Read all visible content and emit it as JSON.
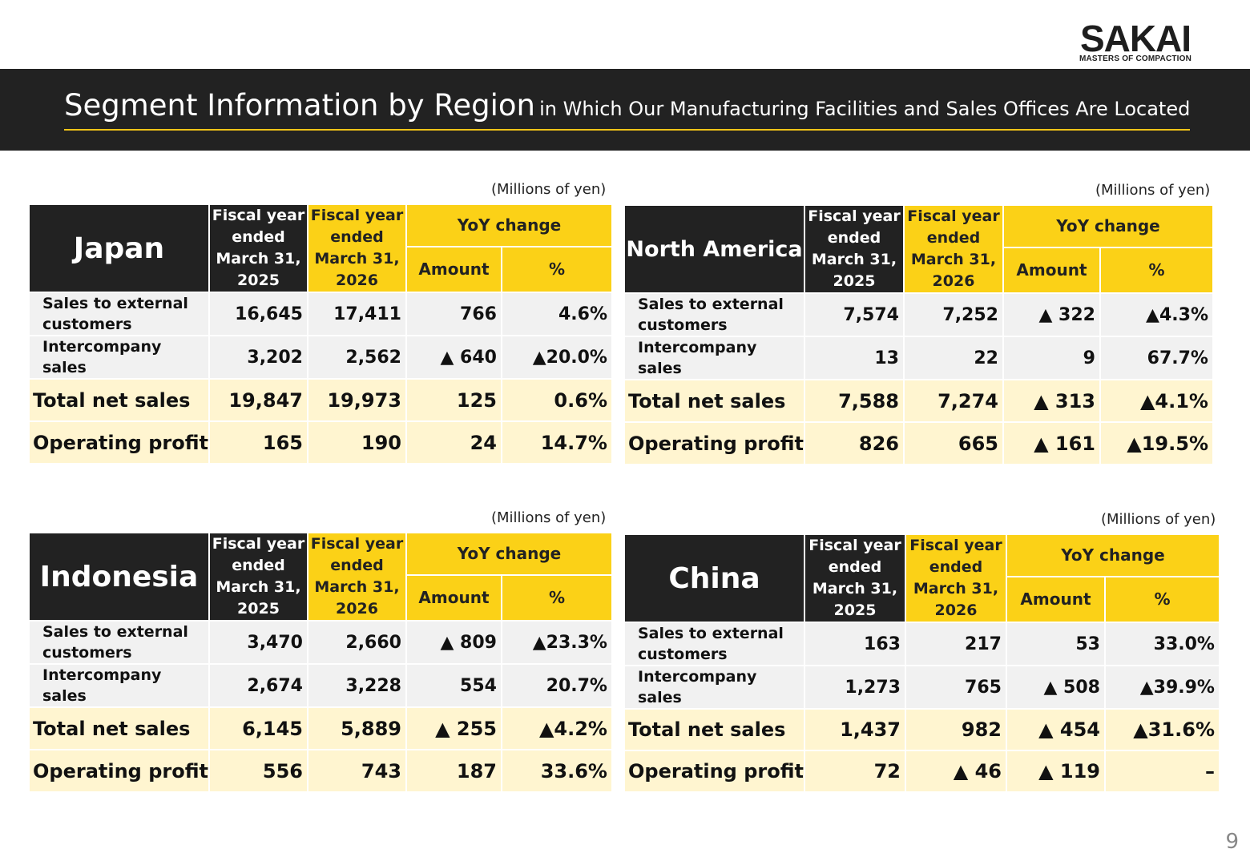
{
  "logo": {
    "name": "SAKAI",
    "tagline": "MASTERS OF COMPACTION"
  },
  "title": {
    "main": "Segment Information by Region",
    "sub": "in Which Our Manufacturing Facilities and Sales Offices Are Located"
  },
  "unit_label": "(Millions of yen)",
  "headers": {
    "fy2025": [
      "Fiscal year",
      "ended",
      "March 31,",
      "2025"
    ],
    "fy2026": [
      "Fiscal year",
      "ended",
      "March 31,",
      "2026"
    ],
    "yoy": "YoY change",
    "amount": "Amount",
    "pct": "%"
  },
  "row_labels": {
    "ext": [
      "Sales to external",
      "customers"
    ],
    "inter": [
      "Intercompany",
      "sales"
    ],
    "total": "Total net sales",
    "op": "Operating profit"
  },
  "regions": [
    {
      "name": "Japan",
      "rows": [
        [
          "16,645",
          "17,411",
          "766",
          "4.6%"
        ],
        [
          "3,202",
          "2,562",
          "▲ 640",
          "▲20.0%"
        ],
        [
          "19,847",
          "19,973",
          "125",
          "0.6%"
        ],
        [
          "165",
          "190",
          "24",
          "14.7%"
        ]
      ]
    },
    {
      "name": "North America",
      "rows": [
        [
          "7,574",
          "7,252",
          "▲ 322",
          "▲4.3%"
        ],
        [
          "13",
          "22",
          "9",
          "67.7%"
        ],
        [
          "7,588",
          "7,274",
          "▲ 313",
          "▲4.1%"
        ],
        [
          "826",
          "665",
          "▲ 161",
          "▲19.5%"
        ]
      ]
    },
    {
      "name": "Indonesia",
      "rows": [
        [
          "3,470",
          "2,660",
          "▲ 809",
          "▲23.3%"
        ],
        [
          "2,674",
          "3,228",
          "554",
          "20.7%"
        ],
        [
          "6,145",
          "5,889",
          "▲ 255",
          "▲4.2%"
        ],
        [
          "556",
          "743",
          "187",
          "33.6%"
        ]
      ]
    },
    {
      "name": "China",
      "rows": [
        [
          "163",
          "217",
          "53",
          "33.0%"
        ],
        [
          "1,273",
          "765",
          "▲ 508",
          "▲39.9%"
        ],
        [
          "1,437",
          "982",
          "▲ 454",
          "▲31.6%"
        ],
        [
          "72",
          "▲ 46",
          "▲ 119",
          "–"
        ]
      ]
    }
  ],
  "page_number": "9"
}
